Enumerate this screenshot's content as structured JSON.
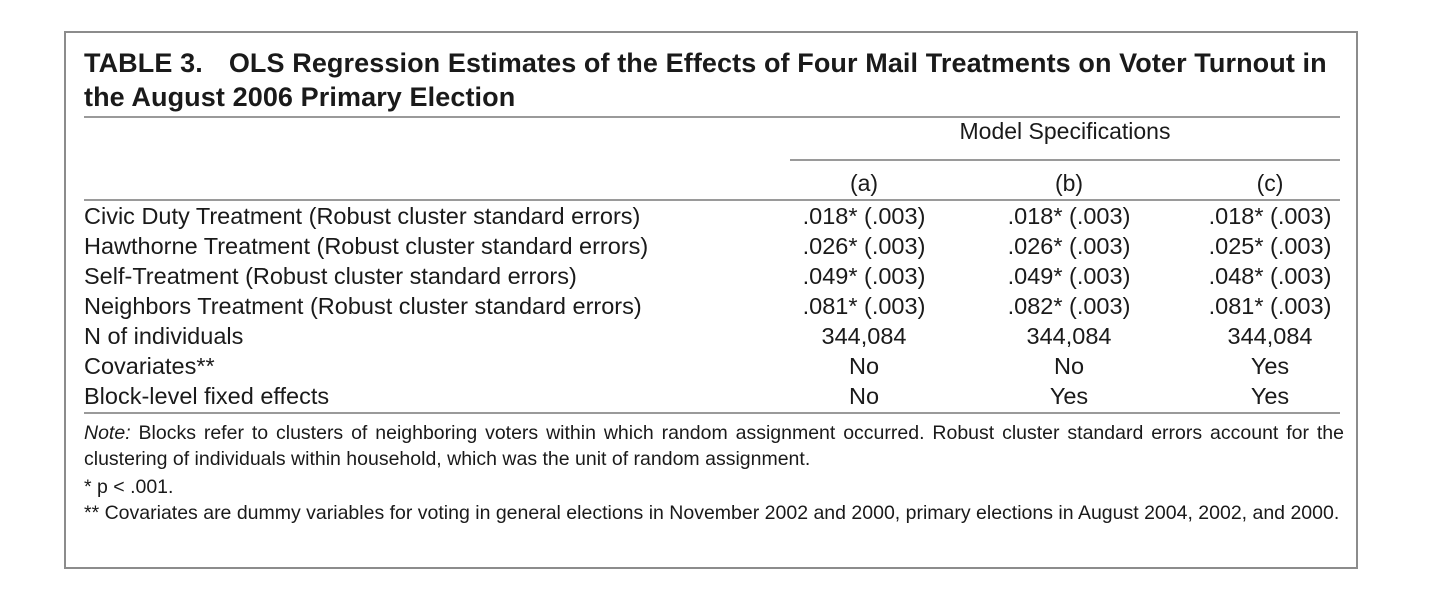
{
  "table": {
    "label": "TABLE 3.",
    "title": "OLS Regression Estimates of the Effects of Four Mail Treatments on Voter Turnout in the August 2006 Primary Election",
    "spanner": "Model Specifications",
    "columns": [
      "(a)",
      "(b)",
      "(c)"
    ],
    "rows": [
      {
        "label": "Civic Duty Treatment (Robust cluster standard errors)",
        "values": [
          ".018* (.003)",
          ".018* (.003)",
          ".018* (.003)"
        ]
      },
      {
        "label": "Hawthorne Treatment (Robust cluster standard errors)",
        "values": [
          ".026* (.003)",
          ".026* (.003)",
          ".025* (.003)"
        ]
      },
      {
        "label": "Self-Treatment (Robust cluster standard errors)",
        "values": [
          ".049* (.003)",
          ".049* (.003)",
          ".048* (.003)"
        ]
      },
      {
        "label": "Neighbors Treatment (Robust cluster standard errors)",
        "values": [
          ".081* (.003)",
          ".082* (.003)",
          ".081* (.003)"
        ]
      },
      {
        "label": "N of individuals",
        "values": [
          "344,084",
          "344,084",
          "344,084"
        ]
      },
      {
        "label": "Covariates**",
        "values": [
          "No",
          "No",
          "Yes"
        ]
      },
      {
        "label": "Block-level fixed effects",
        "values": [
          "No",
          "Yes",
          "Yes"
        ]
      }
    ],
    "notes": {
      "note_lead": "Note:",
      "note_text": " Blocks refer to clusters of neighboring voters within which random assignment occurred. Robust cluster standard errors account for the clustering of individuals within household, which was the unit of random assignment.",
      "footnote1": "* p < .001.",
      "footnote2": "** Covariates are dummy variables for voting in general elections in November 2002 and 2000, primary elections in August 2004, 2002, and 2000."
    }
  }
}
